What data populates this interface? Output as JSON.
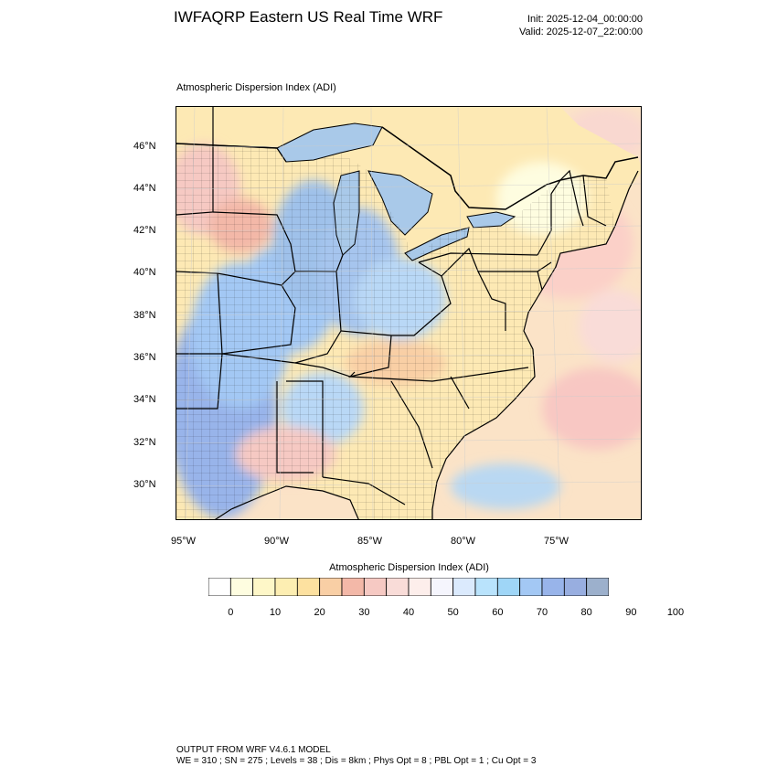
{
  "header": {
    "title": "IWFAQRP Eastern US Real Time WRF",
    "init": "Init: 2025-12-04_00:00:00",
    "valid": "Valid: 2025-12-07_22:00:00"
  },
  "map": {
    "field_label": "Atmospheric Dispersion Index   (ADI)",
    "lat_labels": [
      "46°N",
      "44°N",
      "42°N",
      "40°N",
      "38°N",
      "36°N",
      "34°N",
      "32°N",
      "30°N"
    ],
    "lon_labels": [
      "95°W",
      "90°W",
      "85°W",
      "80°W",
      "75°W"
    ],
    "colors": {
      "land_base": "#fde9b4",
      "ocean_base": "#fbe3c7",
      "lake": "#a9c9e9",
      "border": "#000000"
    }
  },
  "colorbar": {
    "title": "Atmospheric Dispersion Index  (ADI)",
    "tick_labels": [
      "0",
      "10",
      "20",
      "30",
      "40",
      "50",
      "60",
      "70",
      "80",
      "90",
      "100"
    ],
    "colors": [
      "#ffffff",
      "#fefde0",
      "#fef7c8",
      "#fdeeb2",
      "#fde1a0",
      "#f9cfa5",
      "#f3b8a8",
      "#f6c9c3",
      "#f9dcd8",
      "#fdeeeb",
      "#f5f5fd",
      "#dbeafd",
      "#b9e3fc",
      "#9fd6f7",
      "#a3c8f4",
      "#98b4ea",
      "#98aee0",
      "#9cb0cc"
    ]
  },
  "footer": {
    "line1": "OUTPUT FROM WRF V4.6.1 MODEL",
    "line2": "WE = 310 ; SN = 275 ; Levels = 38 ; Dis = 8km ; Phys Opt = 8 ; PBL Opt = 1 ; Cu Opt = 3"
  }
}
